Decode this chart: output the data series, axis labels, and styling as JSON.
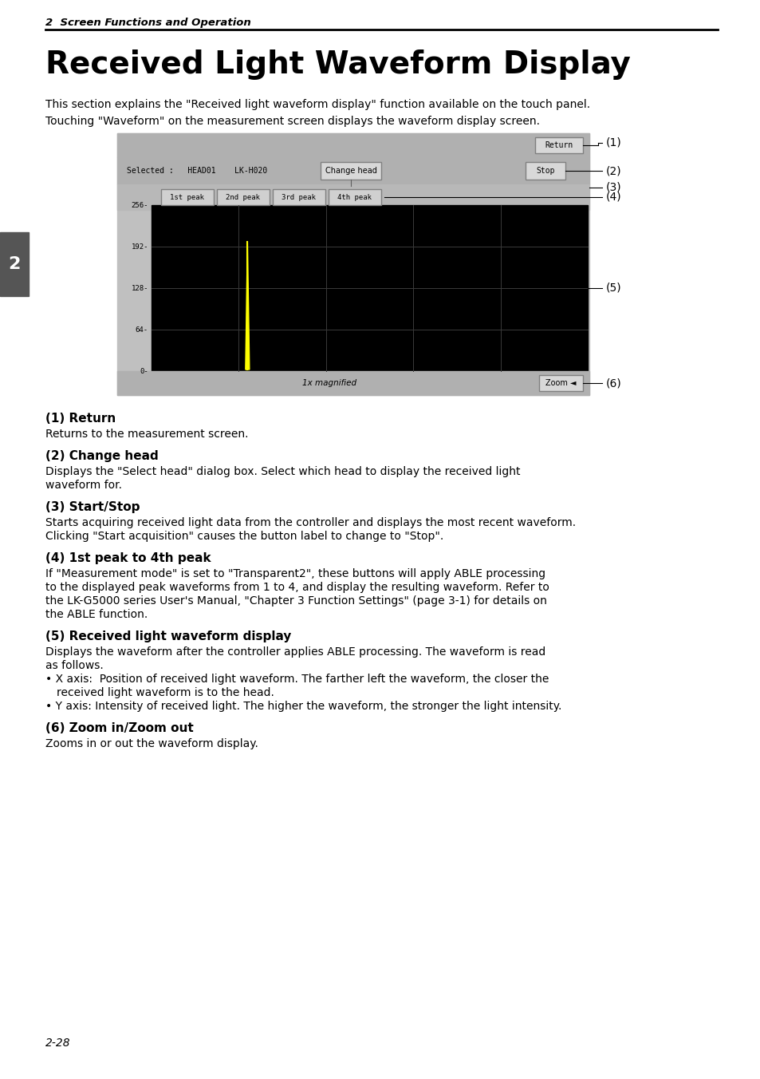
{
  "page_header": "2  Screen Functions and Operation",
  "main_title": "Received Light Waveform Display",
  "intro_text_1": "This section explains the \"Received light waveform display\" function available on the touch panel.",
  "intro_text_2": "Touching \"Waveform\" on the measurement screen displays the waveform display screen.",
  "section_label": "2",
  "callout_labels": [
    "(1)",
    "(2)",
    "(3)",
    "(4)",
    "(5)",
    "(6)"
  ],
  "item_titles": [
    "(1) Return",
    "(2) Change head",
    "(3) Start/Stop",
    "(4) 1st peak to 4th peak",
    "(5) Received light waveform display",
    "(6) Zoom in/Zoom out"
  ],
  "item_bodies": [
    "Returns to the measurement screen.",
    "Displays the \"Select head\" dialog box. Select which head to display the received light\nwaveform for.",
    "Starts acquiring received light data from the controller and displays the most recent waveform.\nClicking \"Start acquisition\" causes the button label to change to \"Stop\".",
    "If \"Measurement mode\" is set to \"Transparent2\", these buttons will apply ABLE processing\nto the displayed peak waveforms from 1 to 4, and display the resulting waveform. Refer to\nthe LK-G5000 series User's Manual, \"Chapter 3 Function Settings\" (page 3-1) for details on\nthe ABLE function.",
    "Displays the waveform after the controller applies ABLE processing. The waveform is read\nas follows.",
    "Zooms in or out the waveform display."
  ],
  "item5_bullets": [
    "X axis:  Position of received light waveform. The farther left the waveform, the closer the\n   received light waveform is to the head.",
    "Y axis: Intensity of received light. The higher the waveform, the stronger the light intensity."
  ],
  "page_number": "2-28",
  "bg_color": "#ffffff",
  "waveform_color": "#ffff00",
  "display_bg": "#000000",
  "screen_header_text": "Selected :   HEAD01    LK-H020",
  "btn_return": "Return",
  "btn_change_head": "Change head",
  "btn_stop": "Stop",
  "btn_peaks": [
    "1st peak",
    "2nd peak",
    "3rd peak",
    "4th peak"
  ],
  "zoom_text": "1x magnified",
  "btn_zoom": "Zoom ◄"
}
